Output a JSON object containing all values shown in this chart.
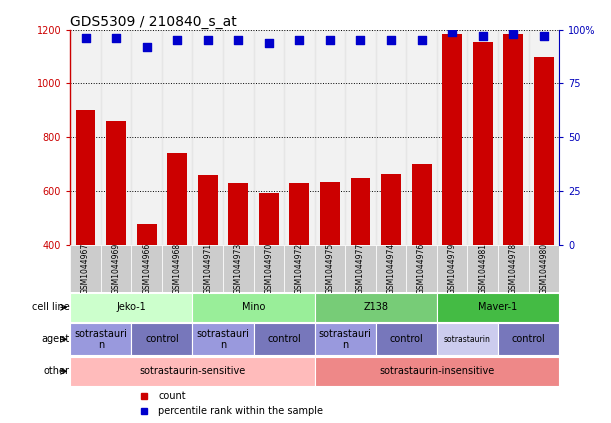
{
  "title": "GDS5309 / 210840_s_at",
  "samples": [
    "GSM1044967",
    "GSM1044969",
    "GSM1044966",
    "GSM1044968",
    "GSM1044971",
    "GSM1044973",
    "GSM1044970",
    "GSM1044972",
    "GSM1044975",
    "GSM1044977",
    "GSM1044974",
    "GSM1044976",
    "GSM1044979",
    "GSM1044981",
    "GSM1044978",
    "GSM1044980"
  ],
  "counts": [
    900,
    860,
    480,
    740,
    660,
    630,
    595,
    630,
    635,
    650,
    665,
    700,
    1185,
    1155,
    1185,
    1100
  ],
  "percentiles": [
    96,
    96,
    92,
    95,
    95,
    95,
    94,
    95,
    95,
    95,
    95,
    95,
    99,
    97,
    98,
    97
  ],
  "ylim_left": [
    400,
    1200
  ],
  "ylim_right": [
    0,
    100
  ],
  "yticks_left": [
    400,
    600,
    800,
    1000,
    1200
  ],
  "yticks_right": [
    0,
    25,
    50,
    75,
    100
  ],
  "bar_color": "#cc0000",
  "dot_color": "#0000cc",
  "cell_line_row": {
    "groups": [
      {
        "label": "Jeko-1",
        "start": 0,
        "end": 4,
        "color": "#ccffcc"
      },
      {
        "label": "Mino",
        "start": 4,
        "end": 8,
        "color": "#99ee99"
      },
      {
        "label": "Z138",
        "start": 8,
        "end": 12,
        "color": "#77cc77"
      },
      {
        "label": "Maver-1",
        "start": 12,
        "end": 16,
        "color": "#44bb44"
      }
    ]
  },
  "agent_row": {
    "groups": [
      {
        "label": "sotrastauri\nn",
        "start": 0,
        "end": 2,
        "color": "#9999dd"
      },
      {
        "label": "control",
        "start": 2,
        "end": 4,
        "color": "#7777bb"
      },
      {
        "label": "sotrastauri\nn",
        "start": 4,
        "end": 6,
        "color": "#9999dd"
      },
      {
        "label": "control",
        "start": 6,
        "end": 8,
        "color": "#7777bb"
      },
      {
        "label": "sotrastauri\nn",
        "start": 8,
        "end": 10,
        "color": "#9999dd"
      },
      {
        "label": "control",
        "start": 10,
        "end": 12,
        "color": "#7777bb"
      },
      {
        "label": "sotrastaurin",
        "start": 12,
        "end": 14,
        "color": "#ccccee"
      },
      {
        "label": "control",
        "start": 14,
        "end": 16,
        "color": "#7777bb"
      }
    ]
  },
  "other_row": {
    "groups": [
      {
        "label": "sotrastaurin-sensitive",
        "start": 0,
        "end": 8,
        "color": "#ffbbbb"
      },
      {
        "label": "sotrastaurin-insensitive",
        "start": 8,
        "end": 16,
        "color": "#ee8888"
      }
    ]
  },
  "legend_items": [
    {
      "color": "#cc0000",
      "label": "count"
    },
    {
      "color": "#0000cc",
      "label": "percentile rank within the sample"
    }
  ],
  "n_samples": 16,
  "bar_width": 0.65,
  "dot_size": 35,
  "bg_color": "#ffffff",
  "axes_color_left": "#cc0000",
  "axes_color_right": "#0000bb",
  "title_fontsize": 10,
  "sample_label_fontsize": 5.5,
  "row_label_fontsize": 7,
  "annotation_fontsize": 7
}
